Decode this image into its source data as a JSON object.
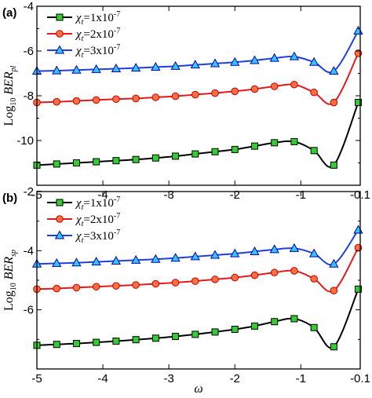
{
  "colors": {
    "black": "#000000",
    "red": "#e41a1c",
    "blue": "#1f3fe0",
    "green_marker": "#33cc33",
    "orange_marker": "#ff6f3f",
    "cyan_marker": "#33c6ff"
  },
  "chart_data": [
    {
      "panel": "(a)",
      "type": "line",
      "xlabel": "ω",
      "ylabel_prefix": "Log",
      "ylabel_sub": "10",
      "ylabel_main": "BER",
      "ylabel_main_sub": "pl",
      "xlim": [
        -5,
        -0.1
      ],
      "ylim": [
        -12,
        -4
      ],
      "xticks": [
        -5,
        -4,
        -3,
        -2,
        -1,
        -0.1
      ],
      "xtick_labels": [
        "-5",
        "-4",
        "-3",
        "-2",
        "-1",
        "-0.1"
      ],
      "yticks": [
        -10,
        -8,
        -6,
        -4
      ],
      "ytick_labels": [
        "-10",
        "-8",
        "-6",
        "-4"
      ],
      "legend_placement": "top-left",
      "legend": [
        {
          "chi": "χ",
          "sub": "t",
          "eq": "=1x10",
          "exp": "-7"
        },
        {
          "chi": "χ",
          "sub": "t",
          "eq": "=2x10",
          "exp": "-7"
        },
        {
          "chi": "χ",
          "sub": "t",
          "eq": "=3x10",
          "exp": "-7"
        }
      ],
      "x": [
        -5.0,
        -4.7,
        -4.4,
        -4.1,
        -3.8,
        -3.5,
        -3.2,
        -2.9,
        -2.6,
        -2.3,
        -2.0,
        -1.7,
        -1.4,
        -1.1,
        -0.8,
        -0.5,
        -0.13
      ],
      "series": [
        {
          "name": "χt=1x10-7",
          "values": [
            -11.1,
            -11.05,
            -11.0,
            -10.95,
            -10.9,
            -10.85,
            -10.78,
            -10.7,
            -10.6,
            -10.5,
            -10.4,
            -10.25,
            -10.1,
            -10.05,
            -10.45,
            -11.1,
            -8.3
          ]
        },
        {
          "name": "χt=2x10-7",
          "values": [
            -8.3,
            -8.27,
            -8.23,
            -8.19,
            -8.15,
            -8.12,
            -8.07,
            -8.02,
            -7.95,
            -7.88,
            -7.8,
            -7.7,
            -7.58,
            -7.5,
            -7.85,
            -8.3,
            -6.1
          ]
        },
        {
          "name": "χt=3x10-7",
          "values": [
            -6.9,
            -6.88,
            -6.85,
            -6.82,
            -6.79,
            -6.76,
            -6.72,
            -6.68,
            -6.62,
            -6.56,
            -6.5,
            -6.42,
            -6.32,
            -6.25,
            -6.5,
            -6.9,
            -5.1
          ]
        }
      ]
    },
    {
      "panel": "(b)",
      "type": "line",
      "xlabel": "ω",
      "ylabel_prefix": "Log",
      "ylabel_sub": "10",
      "ylabel_main": "BER",
      "ylabel_main_sub": "sp",
      "xlim": [
        -5,
        -0.1
      ],
      "ylim": [
        -8,
        -2
      ],
      "xticks": [
        -5,
        -4,
        -3,
        -2,
        -1,
        -0.1
      ],
      "xtick_labels": [
        "-5",
        "-4",
        "-3",
        "-2",
        "-1",
        "-0.1"
      ],
      "yticks": [
        -6,
        -4,
        -2
      ],
      "ytick_labels": [
        "-6",
        "-4",
        "-2"
      ],
      "legend_placement": "top-left",
      "legend": [
        {
          "chi": "χ",
          "sub": "t",
          "eq": "=1x10",
          "exp": "-7"
        },
        {
          "chi": "χ",
          "sub": "t",
          "eq": "=2x10",
          "exp": "-7"
        },
        {
          "chi": "χ",
          "sub": "t",
          "eq": "=3x10",
          "exp": "-7"
        }
      ],
      "x": [
        -5.0,
        -4.7,
        -4.4,
        -4.1,
        -3.8,
        -3.5,
        -3.2,
        -2.9,
        -2.6,
        -2.3,
        -2.0,
        -1.7,
        -1.4,
        -1.1,
        -0.8,
        -0.5,
        -0.13
      ],
      "series": [
        {
          "name": "χt=1x10-7",
          "values": [
            -7.2,
            -7.17,
            -7.14,
            -7.1,
            -7.06,
            -7.01,
            -6.96,
            -6.9,
            -6.83,
            -6.75,
            -6.66,
            -6.55,
            -6.4,
            -6.3,
            -6.6,
            -7.25,
            -5.3
          ]
        },
        {
          "name": "χt=2x10-7",
          "values": [
            -5.3,
            -5.28,
            -5.25,
            -5.22,
            -5.19,
            -5.16,
            -5.12,
            -5.08,
            -5.03,
            -4.97,
            -4.91,
            -4.83,
            -4.74,
            -4.68,
            -4.95,
            -5.35,
            -3.9
          ]
        },
        {
          "name": "χt=3x10-7",
          "values": [
            -4.45,
            -4.43,
            -4.41,
            -4.38,
            -4.35,
            -4.32,
            -4.29,
            -4.25,
            -4.2,
            -4.15,
            -4.1,
            -4.03,
            -3.96,
            -3.92,
            -4.1,
            -4.45,
            -3.3
          ]
        }
      ]
    }
  ]
}
